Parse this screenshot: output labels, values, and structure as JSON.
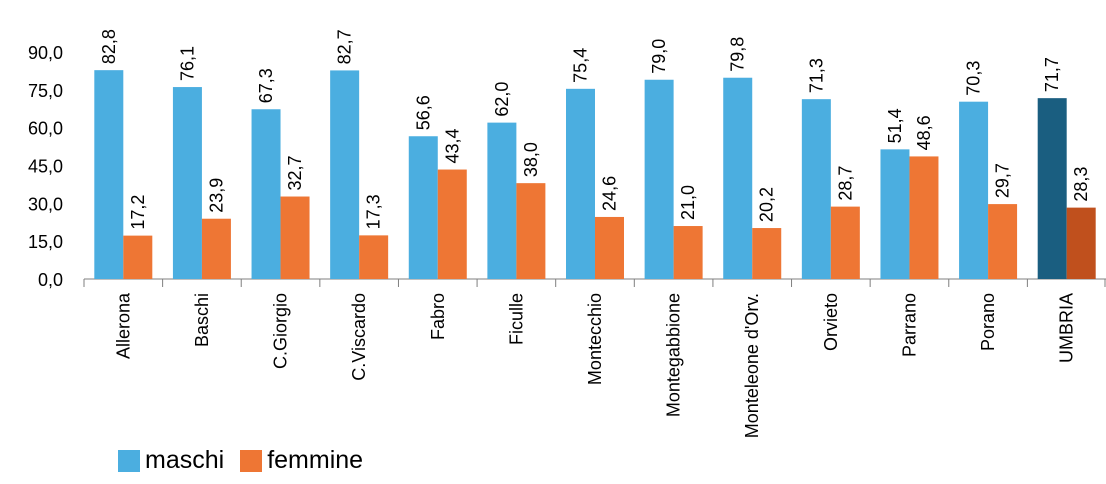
{
  "chart_data": {
    "type": "bar",
    "categories": [
      "Allerona",
      "Baschi",
      "C.Giorgio",
      "C.Viscardo",
      "Fabro",
      "Ficulle",
      "Montecchio",
      "Montegabbione",
      "Monteleone d'Orv.",
      "Orvieto",
      "Parrano",
      "Porano",
      "UMBRIA"
    ],
    "series": [
      {
        "name": "maschi",
        "values": [
          82.8,
          76.1,
          67.3,
          82.7,
          56.6,
          62.0,
          75.4,
          79.0,
          79.8,
          71.3,
          51.4,
          70.3,
          71.7
        ],
        "labels": [
          "82,8",
          "76,1",
          "67,3",
          "82,7",
          "56,6",
          "62,0",
          "75,4",
          "79,0",
          "79,8",
          "71,3",
          "51,4",
          "70,3",
          "71,7"
        ]
      },
      {
        "name": "femmine",
        "values": [
          17.2,
          23.9,
          32.7,
          17.3,
          43.4,
          38.0,
          24.6,
          21.0,
          20.2,
          28.7,
          48.6,
          29.7,
          28.3
        ],
        "labels": [
          "17,2",
          "23,9",
          "32,7",
          "17,3",
          "43,4",
          "38,0",
          "24,6",
          "21,0",
          "20,2",
          "28,7",
          "48,6",
          "29,7",
          "28,3"
        ]
      }
    ],
    "yticks": [
      "0,0",
      "15,0",
      "30,0",
      "45,0",
      "60,0",
      "75,0",
      "90,0"
    ],
    "ytick_values": [
      0,
      15,
      30,
      45,
      60,
      75,
      90
    ],
    "ylim": [
      0,
      90
    ],
    "title": "",
    "xlabel": "",
    "ylabel": "",
    "grid": false,
    "legend_position": "bottom-left",
    "colors": {
      "maschi": "#4BAEE0",
      "femmine": "#EE7634",
      "maschi_highlight": "#1A5E80",
      "femmine_highlight": "#C0501D"
    },
    "highlight_category": "UMBRIA"
  }
}
